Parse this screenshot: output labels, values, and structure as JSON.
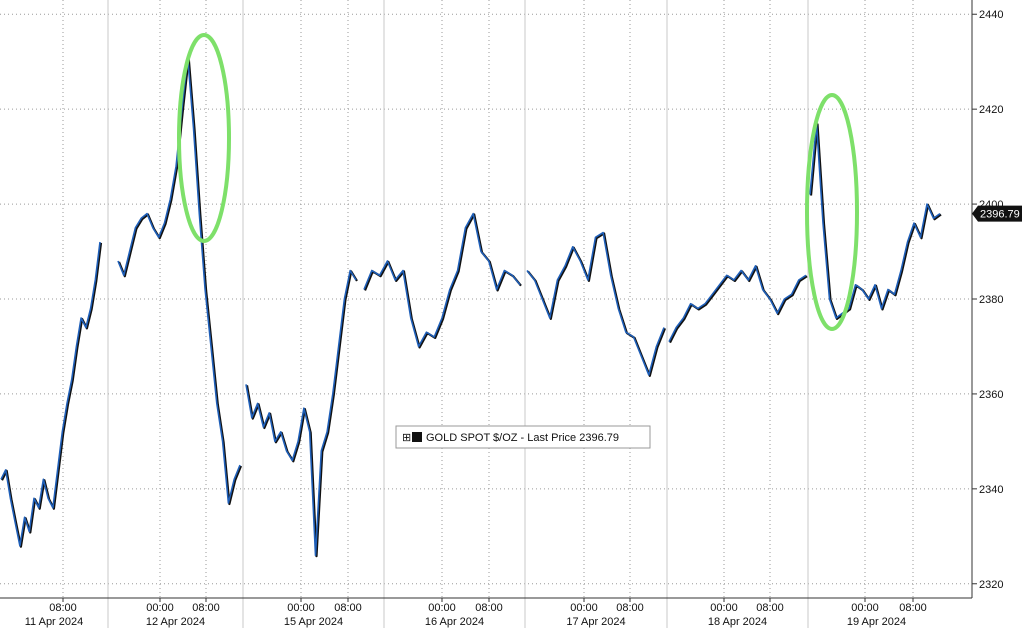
{
  "chart_data": {
    "type": "line",
    "title": "",
    "xlabel": "",
    "ylabel": "",
    "ylim": [
      2317,
      2443
    ],
    "y_ticks": [
      2320,
      2340,
      2360,
      2380,
      2400,
      2420,
      2440
    ],
    "grid": true,
    "legend": {
      "placement": "center",
      "label": "GOLD SPOT $/OZ - Last Price 2396.79",
      "box_icon": "⊞"
    },
    "last_price_label": "2396.79",
    "sessions": [
      {
        "date": "11 Apr 2024",
        "time_labels": [
          "08:00"
        ]
      },
      {
        "date": "12 Apr 2024",
        "time_labels": [
          "00:00",
          "08:00"
        ]
      },
      {
        "date": "15 Apr 2024",
        "time_labels": [
          "00:00",
          "08:00"
        ]
      },
      {
        "date": "16 Apr 2024",
        "time_labels": [
          "00:00",
          "08:00"
        ]
      },
      {
        "date": "17 Apr 2024",
        "time_labels": [
          "00:00",
          "08:00"
        ]
      },
      {
        "date": "18 Apr 2024",
        "time_labels": [
          "00:00",
          "08:00"
        ]
      },
      {
        "date": "19 Apr 2024",
        "time_labels": [
          "00:00",
          "08:00"
        ]
      }
    ],
    "series": [
      {
        "name": "GOLD SPOT $/OZ",
        "color": "#1f5fb8",
        "values": [
          2342,
          2344,
          2338,
          2333,
          2328,
          2334,
          2331,
          2338,
          2336,
          2342,
          2338,
          2336,
          2344,
          2352,
          2358,
          2363,
          2370,
          2376,
          2374,
          2378,
          2384,
          2392,
          2388,
          2385,
          2390,
          2395,
          2397,
          2398,
          2395,
          2393,
          2396,
          2401,
          2408,
          2420,
          2431,
          2416,
          2398,
          2382,
          2370,
          2358,
          2350,
          2337,
          2342,
          2345,
          2362,
          2355,
          2358,
          2353,
          2356,
          2350,
          2352,
          2348,
          2346,
          2350,
          2357,
          2352,
          2326,
          2348,
          2352,
          2360,
          2370,
          2380,
          2386,
          2384,
          2382,
          2386,
          2385,
          2388,
          2384,
          2386,
          2376,
          2370,
          2373,
          2372,
          2376,
          2382,
          2386,
          2395,
          2398,
          2390,
          2388,
          2382,
          2386,
          2385,
          2383,
          2386,
          2384,
          2380,
          2376,
          2384,
          2387,
          2391,
          2388,
          2384,
          2393,
          2394,
          2385,
          2378,
          2373,
          2372,
          2368,
          2364,
          2370,
          2374,
          2371,
          2374,
          2376,
          2379,
          2378,
          2379,
          2381,
          2383,
          2385,
          2384,
          2386,
          2384,
          2387,
          2382,
          2380,
          2377,
          2380,
          2381,
          2384,
          2385,
          2402,
          2417,
          2396,
          2380,
          2376,
          2377,
          2378,
          2383,
          2382,
          2380,
          2383,
          2378,
          2382,
          2381,
          2386,
          2392,
          2396,
          2393,
          2400,
          2397,
          2398
        ]
      }
    ],
    "annotations": [
      {
        "type": "ellipse",
        "color": "#7ee06a",
        "label": ""
      },
      {
        "type": "ellipse",
        "color": "#7ee06a",
        "label": ""
      }
    ]
  }
}
